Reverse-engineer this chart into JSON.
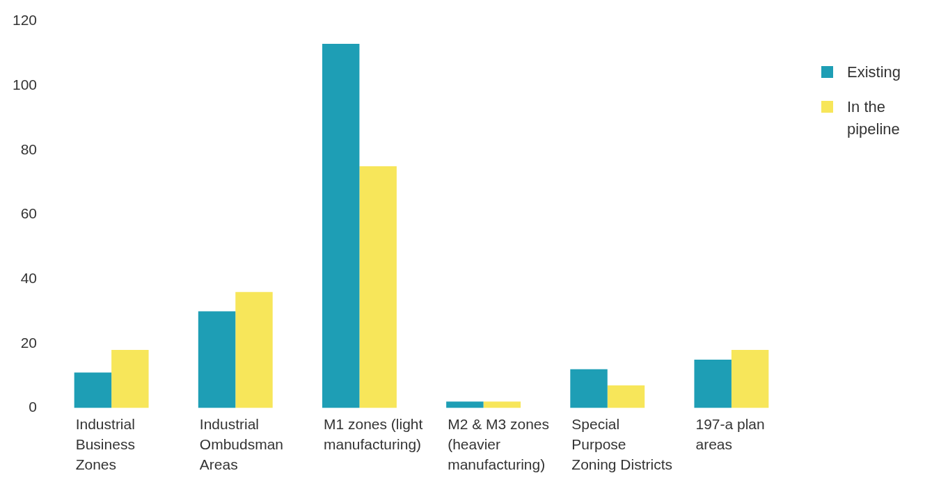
{
  "chart_data": {
    "type": "bar",
    "categories": [
      "Industrial Business Zones",
      "Industrial Ombudsman Areas",
      "M1 zones (light manufacturing)",
      "M2 & M3 zones (heavier manufacturing)",
      "Special Purpose Zoning Districts",
      "197-a plan areas"
    ],
    "series": [
      {
        "name": "Existing",
        "color": "#1e9eb5",
        "values": [
          11,
          30,
          113,
          2,
          12,
          15
        ]
      },
      {
        "name": "In the pipeline",
        "color": "#f7e65a",
        "values": [
          18,
          36,
          75,
          2,
          7,
          18
        ]
      }
    ],
    "ylim": [
      0,
      120
    ],
    "yticks": [
      0,
      20,
      40,
      60,
      80,
      100,
      120
    ],
    "grid": false,
    "legend": "top right"
  }
}
